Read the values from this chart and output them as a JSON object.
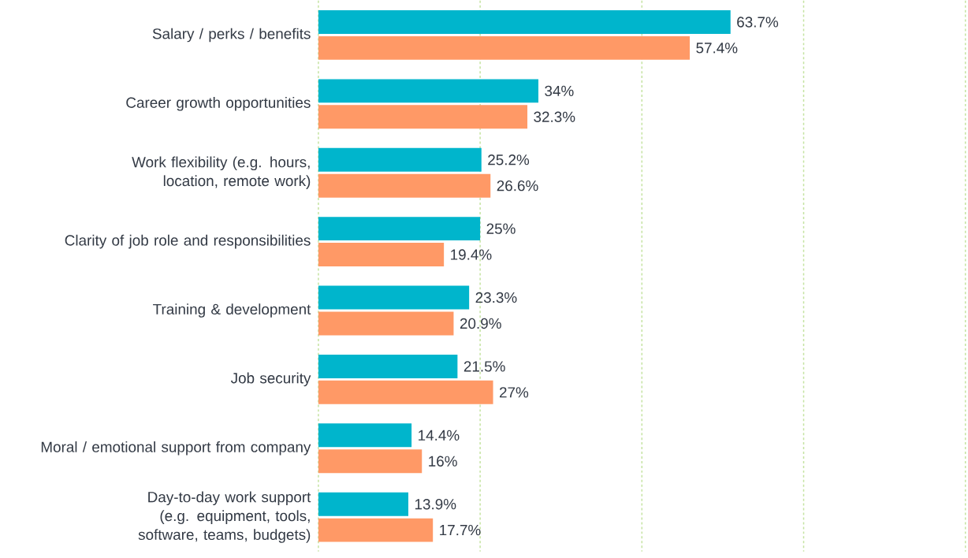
{
  "chart_data": {
    "type": "bar",
    "orientation": "horizontal",
    "categories": [
      "Salary / perks / benefits",
      "Career growth opportunities",
      "Work flexibility (e.g. hours, location, remote work)",
      "Clarity of job role and responsibilities",
      "Training & development",
      "Job security",
      "Moral / emotional support from company",
      "Day-to-day work support (e.g. equipment, tools, software, teams, budgets)"
    ],
    "series": [
      {
        "color": "#00b5cc",
        "values": [
          63.7,
          34,
          25.2,
          25,
          23.3,
          21.5,
          14.4,
          13.9
        ],
        "value_labels": [
          "63.7%",
          "34%",
          "25.2%",
          "25%",
          "23.3%",
          "21.5%",
          "14.4%",
          "13.9%"
        ]
      },
      {
        "color": "#ff9966",
        "values": [
          57.4,
          32.3,
          26.6,
          19.4,
          20.9,
          27,
          16,
          17.7
        ],
        "value_labels": [
          "57.4%",
          "32.3%",
          "26.6%",
          "19.4%",
          "20.9%",
          "27%",
          "16%",
          "17.7%"
        ]
      }
    ],
    "xlim": [
      0,
      100
    ],
    "xticks": [
      {
        "value": 0,
        "label": null
      },
      {
        "value": 25,
        "label": null
      },
      {
        "value": 50,
        "label": null
      },
      {
        "value": 75,
        "label": null
      },
      {
        "value": 100,
        "label": null
      }
    ],
    "grid": "x",
    "tick_labels": "y"
  }
}
